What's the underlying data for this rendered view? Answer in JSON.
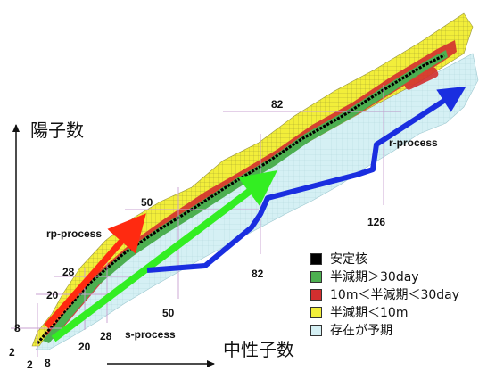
{
  "axes": {
    "y_title": "陽子数",
    "x_title": "中性子数"
  },
  "magic_numbers": {
    "z": [
      "2",
      "8",
      "20",
      "28",
      "50",
      "82"
    ],
    "n": [
      "2",
      "8",
      "20",
      "28",
      "50",
      "82",
      "126"
    ]
  },
  "processes": {
    "rp": "rp-process",
    "s": "s-process",
    "r": "r-process"
  },
  "legend": [
    {
      "label": "安定核",
      "color": "#000000"
    },
    {
      "label": "半減期＞30day",
      "color": "#4caf50"
    },
    {
      "label": "10m＜半減期＜30day",
      "color": "#d32f2f"
    },
    {
      "label": "半減期＜10m",
      "color": "#f2ee3a"
    },
    {
      "label": "存在が予期",
      "color": "#d5f0f4"
    }
  ],
  "colors": {
    "predicted": "#d5f0f4",
    "short": "#f2ee3a",
    "medium": "#d32f2f",
    "long": "#4caf50",
    "stable": "#000000",
    "rp_arrow": "#ff2a10",
    "s_arrow": "#33ee22",
    "r_arrow": "#1a2ee0",
    "magic_line": "#c8a0d0"
  }
}
